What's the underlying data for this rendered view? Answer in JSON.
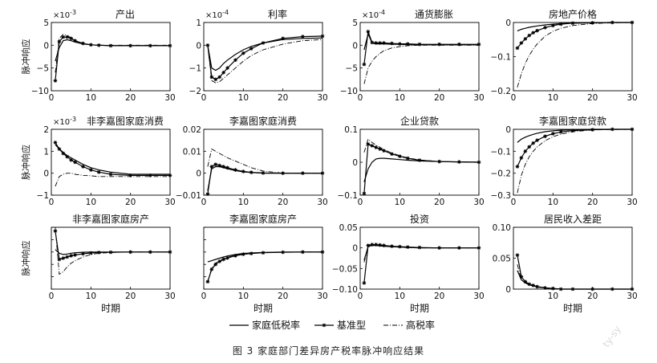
{
  "caption": "图 3  家庭部门差异房产税率脉冲响应结果",
  "watermark": "ty-sy",
  "ylabel": "脉冲响应",
  "xlabel": "时期",
  "legend": [
    {
      "name": "家庭低税率",
      "style": "solid"
    },
    {
      "name": "基准型",
      "style": "star"
    },
    {
      "name": "高税率",
      "style": "dashdot"
    }
  ],
  "chart_data": [
    {
      "type": "line",
      "title": "产出",
      "exp": "×10",
      "expSup": "-3",
      "ylim": [
        -10,
        5
      ],
      "yticks": [
        -10,
        -5,
        0,
        5
      ],
      "xlim": [
        0,
        30
      ],
      "xticks": [
        0,
        10,
        20,
        30
      ],
      "x": [
        1,
        2,
        3,
        4,
        5,
        6,
        8,
        10,
        12,
        15,
        20,
        25,
        30
      ],
      "series": [
        {
          "name": "家庭低税率",
          "values": [
            -3.5,
            -0.5,
            1.0,
            1.2,
            1.0,
            0.7,
            0.3,
            0.1,
            0,
            -0.1,
            -0.1,
            -0.1,
            -0.1
          ]
        },
        {
          "name": "基准型",
          "values": [
            -7.8,
            0.8,
            1.8,
            1.8,
            1.5,
            1.0,
            0.4,
            0.1,
            0,
            -0.1,
            -0.1,
            -0.1,
            -0.1
          ]
        },
        {
          "name": "高税率",
          "values": [
            -6.0,
            1.5,
            2.4,
            2.2,
            1.6,
            1.0,
            0.3,
            0.1,
            0,
            0,
            0,
            0,
            0
          ]
        }
      ]
    },
    {
      "type": "line",
      "title": "利率",
      "exp": "×10",
      "expSup": "-4",
      "ylim": [
        -2,
        1
      ],
      "yticks": [
        -2,
        -1,
        0,
        1
      ],
      "xlim": [
        0,
        30
      ],
      "xticks": [
        0,
        10,
        20,
        30
      ],
      "x": [
        1,
        2,
        3,
        4,
        5,
        6,
        8,
        10,
        12,
        15,
        20,
        25,
        30
      ],
      "series": [
        {
          "name": "家庭低税率",
          "values": [
            0.0,
            -1.0,
            -1.1,
            -1.0,
            -0.8,
            -0.65,
            -0.4,
            -0.2,
            -0.05,
            0.1,
            0.25,
            0.3,
            0.32
          ]
        },
        {
          "name": "基准型",
          "values": [
            0.0,
            -1.4,
            -1.5,
            -1.4,
            -1.2,
            -1.0,
            -0.65,
            -0.35,
            -0.15,
            0.1,
            0.3,
            0.38,
            0.4
          ]
        },
        {
          "name": "高税率",
          "values": [
            0.0,
            -1.55,
            -1.65,
            -1.6,
            -1.45,
            -1.3,
            -1.0,
            -0.7,
            -0.45,
            -0.2,
            0.05,
            0.2,
            0.25
          ]
        }
      ]
    },
    {
      "type": "line",
      "title": "通货膨胀",
      "exp": "×10",
      "expSup": "-4",
      "ylim": [
        -10,
        5
      ],
      "yticks": [
        -10,
        -5,
        0,
        5
      ],
      "xlim": [
        0,
        30
      ],
      "xticks": [
        0,
        10,
        20,
        30
      ],
      "x": [
        1,
        2,
        3,
        4,
        5,
        6,
        8,
        10,
        12,
        15,
        20,
        25,
        30
      ],
      "series": [
        {
          "name": "家庭低税率",
          "values": [
            -1.0,
            2.5,
            0.5,
            0.3,
            0.3,
            0.3,
            0.2,
            0.2,
            0.1,
            0.1,
            0.1,
            0.1,
            0.1
          ]
        },
        {
          "name": "基准型",
          "values": [
            -4.2,
            3.0,
            0.6,
            0.5,
            0.5,
            0.5,
            0.4,
            0.3,
            0.3,
            0.2,
            0.2,
            0.2,
            0.2
          ]
        },
        {
          "name": "高税率",
          "values": [
            -8.5,
            -5.0,
            -3.5,
            -2.5,
            -1.8,
            -1.2,
            -0.6,
            -0.3,
            -0.1,
            0,
            0,
            0,
            0
          ]
        }
      ]
    },
    {
      "type": "line",
      "title": "房地产价格",
      "exp": "",
      "expSup": "",
      "ylim": [
        -0.2,
        0
      ],
      "yticks": [
        -0.2,
        -0.1,
        0
      ],
      "yticklabels": [
        "−0.2",
        "−0.1",
        "0"
      ],
      "xlim": [
        0,
        30
      ],
      "xticks": [
        0,
        10,
        20,
        30
      ],
      "x": [
        1,
        2,
        3,
        4,
        5,
        6,
        8,
        10,
        12,
        15,
        20,
        25,
        30
      ],
      "series": [
        {
          "name": "家庭低税率",
          "values": [
            -0.025,
            -0.02,
            -0.017,
            -0.014,
            -0.012,
            -0.01,
            -0.007,
            -0.005,
            -0.003,
            -0.002,
            -0.001,
            0,
            0
          ]
        },
        {
          "name": "基准型",
          "values": [
            -0.075,
            -0.06,
            -0.048,
            -0.038,
            -0.03,
            -0.024,
            -0.015,
            -0.009,
            -0.005,
            -0.002,
            -0.001,
            0,
            0
          ]
        },
        {
          "name": "高税率",
          "values": [
            -0.19,
            -0.15,
            -0.12,
            -0.097,
            -0.078,
            -0.063,
            -0.04,
            -0.026,
            -0.017,
            -0.009,
            -0.003,
            -0.001,
            0
          ]
        }
      ]
    },
    {
      "type": "line",
      "title": "非李嘉图家庭消费",
      "exp": "×10",
      "expSup": "-3",
      "ylim": [
        -1,
        2
      ],
      "yticks": [
        -1,
        0,
        1,
        2
      ],
      "xlim": [
        0,
        30
      ],
      "xticks": [
        0,
        10,
        20,
        30
      ],
      "x": [
        1,
        2,
        3,
        4,
        5,
        6,
        8,
        10,
        12,
        15,
        20,
        25,
        30
      ],
      "series": [
        {
          "name": "家庭低税率",
          "values": [
            1.3,
            1.1,
            0.95,
            0.8,
            0.7,
            0.6,
            0.4,
            0.25,
            0.15,
            0.05,
            -0.05,
            -0.05,
            -0.05
          ]
        },
        {
          "name": "基准型",
          "values": [
            1.4,
            1.1,
            0.9,
            0.75,
            0.6,
            0.5,
            0.3,
            0.15,
            0.05,
            -0.05,
            -0.1,
            -0.1,
            -0.1
          ]
        },
        {
          "name": "高税率",
          "values": [
            -0.6,
            -0.15,
            -0.05,
            0,
            0,
            -0.05,
            -0.1,
            -0.12,
            -0.15,
            -0.15,
            -0.15,
            -0.15,
            -0.15
          ]
        }
      ]
    },
    {
      "type": "line",
      "title": "李嘉图家庭消费",
      "exp": "",
      "expSup": "",
      "ylim": [
        -0.01,
        0.02
      ],
      "yticks": [
        -0.01,
        0,
        0.01,
        0.02
      ],
      "yticklabels": [
        "−0.01",
        "0",
        "0.01",
        "0.02"
      ],
      "xlim": [
        0,
        30
      ],
      "xticks": [
        0,
        10,
        20,
        30
      ],
      "x": [
        1,
        2,
        3,
        4,
        5,
        6,
        8,
        10,
        12,
        15,
        20,
        25,
        30
      ],
      "series": [
        {
          "name": "家庭低税率",
          "values": [
            -0.008,
            0.002,
            0.003,
            0.003,
            0.0025,
            0.002,
            0.0012,
            0.0006,
            0.0003,
            0,
            0,
            0,
            0
          ]
        },
        {
          "name": "基准型",
          "values": [
            -0.0095,
            0.003,
            0.004,
            0.0035,
            0.003,
            0.0025,
            0.0015,
            0.0008,
            0.0004,
            0.0001,
            0,
            0,
            0
          ]
        },
        {
          "name": "高税率",
          "values": [
            0.003,
            0.011,
            0.01,
            0.009,
            0.008,
            0.007,
            0.0055,
            0.004,
            0.0025,
            0.001,
            0,
            0,
            0
          ]
        }
      ]
    },
    {
      "type": "line",
      "title": "企业贷款",
      "exp": "",
      "expSup": "",
      "ylim": [
        -0.1,
        0.1
      ],
      "yticks": [
        -0.1,
        0,
        0.1
      ],
      "yticklabels": [
        "−0.1",
        "0",
        "0.1"
      ],
      "xlim": [
        0,
        30
      ],
      "xticks": [
        0,
        10,
        20,
        30
      ],
      "x": [
        1,
        2,
        3,
        4,
        5,
        6,
        8,
        10,
        12,
        15,
        20,
        25,
        30
      ],
      "series": [
        {
          "name": "家庭低税率",
          "values": [
            -0.06,
            -0.02,
            0,
            0.01,
            0.012,
            0.012,
            0.01,
            0.008,
            0.006,
            0.004,
            0.002,
            0.001,
            0
          ]
        },
        {
          "name": "基准型",
          "values": [
            -0.095,
            0.055,
            0.05,
            0.045,
            0.04,
            0.035,
            0.025,
            0.018,
            0.012,
            0.006,
            0.002,
            0.001,
            0
          ]
        },
        {
          "name": "高税率",
          "values": [
            0.03,
            0.07,
            0.06,
            0.052,
            0.045,
            0.038,
            0.028,
            0.02,
            0.013,
            0.007,
            0.002,
            0.001,
            0
          ]
        }
      ]
    },
    {
      "type": "line",
      "title": "李嘉图家庭贷款",
      "exp": "",
      "expSup": "",
      "ylim": [
        -0.3,
        0
      ],
      "yticks": [
        -0.3,
        -0.2,
        -0.1,
        0
      ],
      "yticklabels": [
        "−0.3",
        "−0.2",
        "−0.1",
        "0"
      ],
      "xlim": [
        0,
        30
      ],
      "xticks": [
        0,
        10,
        20,
        30
      ],
      "x": [
        1,
        2,
        3,
        4,
        5,
        6,
        8,
        10,
        12,
        15,
        20,
        25,
        30
      ],
      "series": [
        {
          "name": "家庭低税率",
          "values": [
            -0.06,
            -0.045,
            -0.036,
            -0.029,
            -0.023,
            -0.018,
            -0.011,
            -0.007,
            -0.004,
            -0.002,
            0,
            0,
            0
          ]
        },
        {
          "name": "基准型",
          "values": [
            -0.17,
            -0.13,
            -0.1,
            -0.08,
            -0.063,
            -0.05,
            -0.032,
            -0.02,
            -0.012,
            -0.006,
            -0.002,
            0,
            0
          ]
        },
        {
          "name": "高税率",
          "values": [
            -0.29,
            -0.21,
            -0.16,
            -0.125,
            -0.1,
            -0.08,
            -0.052,
            -0.034,
            -0.022,
            -0.011,
            -0.003,
            -0.001,
            0
          ]
        }
      ]
    },
    {
      "type": "line",
      "title": "非李嘉图家庭房产",
      "exp": "",
      "expSup": "",
      "ylim": [
        -0.15,
        0.1
      ],
      "yticks": [
        -0.15,
        -0.1,
        -0.05,
        0,
        0.05,
        0.1
      ],
      "yticklabels": [
        "",
        "",
        "",
        "",
        "",
        ""
      ],
      "xlim": [
        0,
        30
      ],
      "xticks": [
        0,
        10,
        20,
        30
      ],
      "x": [
        1,
        2,
        3,
        4,
        5,
        6,
        8,
        10,
        12,
        15,
        20,
        25,
        30
      ],
      "series": [
        {
          "name": "家庭低税率",
          "values": [
            0.01,
            -0.005,
            -0.01,
            -0.008,
            -0.005,
            -0.003,
            -0.001,
            0,
            0,
            0,
            0,
            0,
            0
          ]
        },
        {
          "name": "基准型",
          "values": [
            0.085,
            -0.03,
            -0.025,
            -0.02,
            -0.015,
            -0.012,
            -0.007,
            -0.004,
            -0.002,
            -0.001,
            0,
            0,
            0
          ]
        },
        {
          "name": "高税率",
          "values": [
            0.1,
            -0.09,
            -0.08,
            -0.06,
            -0.045,
            -0.035,
            -0.02,
            -0.01,
            -0.005,
            -0.002,
            0,
            0,
            0
          ]
        }
      ]
    },
    {
      "type": "line",
      "title": "李嘉图家庭房产",
      "exp": "",
      "expSup": "",
      "ylim": [
        -0.15,
        0.1
      ],
      "yticks": [
        -0.15,
        -0.1,
        -0.05,
        0,
        0.05,
        0.1
      ],
      "yticklabels": [
        "",
        "",
        "",
        "",
        "",
        ""
      ],
      "xlim": [
        0,
        30
      ],
      "xticks": [
        0,
        10,
        20,
        30
      ],
      "x": [
        1,
        2,
        3,
        4,
        5,
        6,
        8,
        10,
        12,
        15,
        20,
        25,
        30
      ],
      "series": [
        {
          "name": "家庭低税率",
          "values": [
            -0.04,
            -0.035,
            -0.03,
            -0.025,
            -0.02,
            -0.016,
            -0.01,
            -0.006,
            -0.004,
            -0.002,
            0,
            0,
            0
          ]
        },
        {
          "name": "基准型",
          "values": [
            -0.12,
            -0.07,
            -0.05,
            -0.038,
            -0.03,
            -0.024,
            -0.015,
            -0.009,
            -0.006,
            -0.003,
            -0.001,
            0,
            0
          ]
        },
        {
          "name": "高税率",
          "values": [
            -0.12,
            -0.065,
            -0.045,
            -0.035,
            -0.027,
            -0.021,
            -0.013,
            -0.008,
            -0.005,
            -0.002,
            -0.001,
            0,
            0
          ]
        }
      ]
    },
    {
      "type": "line",
      "title": "投资",
      "exp": "",
      "expSup": "",
      "ylim": [
        -0.1,
        0.05
      ],
      "yticks": [
        -0.1,
        -0.05,
        0,
        0.05
      ],
      "yticklabels": [
        "−0.10",
        "−0.05",
        "0",
        "0.05"
      ],
      "xlim": [
        0,
        30
      ],
      "xticks": [
        0,
        10,
        20,
        30
      ],
      "x": [
        1,
        2,
        3,
        4,
        5,
        6,
        8,
        10,
        12,
        15,
        20,
        25,
        30
      ],
      "series": [
        {
          "name": "家庭低税率",
          "values": [
            -0.03,
            0.003,
            0.006,
            0.006,
            0.005,
            0.004,
            0.003,
            0.002,
            0.001,
            0,
            0,
            0,
            0
          ]
        },
        {
          "name": "基准型",
          "values": [
            -0.085,
            0.006,
            0.008,
            0.008,
            0.007,
            0.006,
            0.004,
            0.003,
            0.002,
            0.001,
            0,
            0,
            0
          ]
        },
        {
          "name": "高税率",
          "values": [
            -0.035,
            0.004,
            0.006,
            0.006,
            0.005,
            0.004,
            0.003,
            0.002,
            0.001,
            0,
            0,
            0,
            0
          ]
        }
      ]
    },
    {
      "type": "line",
      "title": "居民收入差距",
      "exp": "",
      "expSup": "",
      "ylim": [
        0,
        0.1
      ],
      "yticks": [
        0,
        0.05,
        0.1
      ],
      "yticklabels": [
        "0",
        "0.05",
        "0.10"
      ],
      "xlim": [
        0,
        30
      ],
      "xticks": [
        10,
        20,
        30
      ],
      "x": [
        1,
        2,
        3,
        4,
        5,
        6,
        8,
        10,
        12,
        15,
        20,
        25,
        30
      ],
      "series": [
        {
          "name": "家庭低税率",
          "values": [
            0.03,
            0.015,
            0.01,
            0.007,
            0.005,
            0.004,
            0.002,
            0.001,
            0,
            0,
            0,
            0,
            0
          ]
        },
        {
          "name": "基准型",
          "values": [
            0.055,
            0.02,
            0.012,
            0.008,
            0.006,
            0.004,
            0.002,
            0.001,
            0,
            0,
            0,
            0,
            0
          ]
        },
        {
          "name": "高税率",
          "values": [
            0.04,
            0.015,
            0.01,
            0.007,
            0.005,
            0.003,
            0.002,
            0.001,
            0,
            0,
            0,
            0,
            0
          ]
        }
      ]
    }
  ]
}
